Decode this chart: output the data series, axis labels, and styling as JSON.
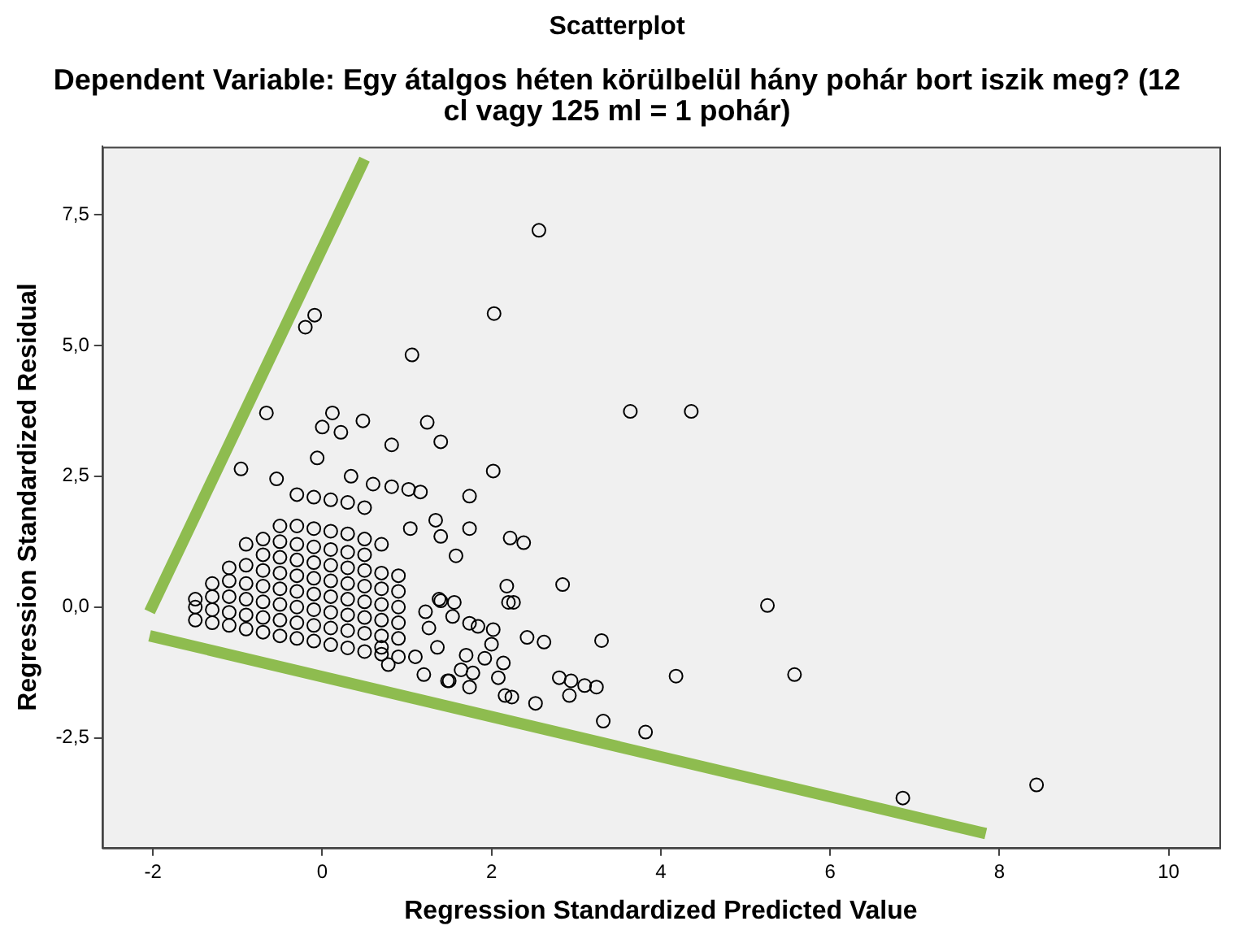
{
  "chart_data": {
    "type": "scatter",
    "title": "Scatterplot",
    "subtitle": "Dependent Variable: Egy átalgos héten körülbelül hány pohár bort iszik meg? (12 cl vagy 125 ml = 1 pohár)",
    "xlabel": "Regression Standardized Predicted Value",
    "ylabel": "Regression Standardized Residual",
    "xlim": [
      -2.6,
      10.6
    ],
    "ylim": [
      -4.6,
      8.8
    ],
    "xticks": [
      -2,
      0,
      2,
      4,
      6,
      8,
      10
    ],
    "yticks": [
      {
        "value": -2.5,
        "label": "-2,5"
      },
      {
        "value": 0,
        "label": "0,0"
      },
      {
        "value": 2.5,
        "label": "2,5"
      },
      {
        "value": 5,
        "label": "5,0"
      },
      {
        "value": 7.5,
        "label": "7,5"
      }
    ],
    "grid": false,
    "legend": false,
    "marker": "circle",
    "series": [
      {
        "type": "scatter",
        "color": "#000000",
        "x": [
          2.56,
          2.03,
          -0.09,
          -0.2,
          1.06,
          3.64,
          4.36,
          -0.66,
          0.12,
          0,
          0.22,
          0.48,
          1.24,
          1.4,
          0.82,
          -0.06,
          -0.96,
          -0.54,
          2.02,
          1.74,
          1.74,
          1.04,
          1.34,
          1.4,
          1.58,
          2.22,
          2.38,
          2.18,
          2.26,
          2.84,
          5.26,
          2.42,
          2.62,
          3.3,
          4.18,
          5.58,
          2.8,
          2.94,
          3.1,
          3.24,
          2.92,
          2.16,
          2.52,
          3.32,
          3.82,
          6.86,
          8.44,
          1.38,
          1.56,
          1.26,
          1.74,
          1.84,
          2.02,
          2.0,
          1.36,
          1.7,
          1.92,
          2.14,
          1.64,
          1.78,
          2.08,
          1.48,
          1.74,
          1.2,
          1.5,
          2.24,
          2.2,
          1.1,
          0.7,
          0.78,
          1.54,
          1.22,
          1.4,
          0.34,
          0.6,
          0.82,
          1.02,
          1.16,
          -1.5,
          -1.5,
          -1.5,
          -1.3,
          -1.3,
          -1.3,
          -1.3,
          -1.1,
          -1.1,
          -1.1,
          -1.1,
          -1.1,
          -0.9,
          -0.9,
          -0.9,
          -0.9,
          -0.9,
          -0.9,
          -0.7,
          -0.7,
          -0.7,
          -0.7,
          -0.7,
          -0.7,
          -0.7,
          -0.5,
          -0.5,
          -0.5,
          -0.5,
          -0.5,
          -0.5,
          -0.5,
          -0.5,
          -0.3,
          -0.3,
          -0.3,
          -0.3,
          -0.3,
          -0.3,
          -0.3,
          -0.3,
          -0.3,
          -0.1,
          -0.1,
          -0.1,
          -0.1,
          -0.1,
          -0.1,
          -0.1,
          -0.1,
          -0.1,
          0.1,
          0.1,
          0.1,
          0.1,
          0.1,
          0.1,
          0.1,
          0.1,
          0.1,
          0.3,
          0.3,
          0.3,
          0.3,
          0.3,
          0.3,
          0.3,
          0.3,
          0.3,
          0.5,
          0.5,
          0.5,
          0.5,
          0.5,
          0.5,
          0.5,
          0.5,
          0.5,
          0.7,
          0.7,
          0.7,
          0.7,
          0.7,
          0.7,
          0.7,
          0.9,
          0.9,
          0.9,
          0.9,
          0.9,
          0.9
        ],
        "values": [
          7.2,
          5.61,
          5.58,
          5.35,
          4.82,
          3.74,
          3.74,
          3.71,
          3.71,
          3.44,
          3.34,
          3.56,
          3.53,
          3.16,
          3.1,
          2.85,
          2.64,
          2.45,
          2.6,
          2.12,
          1.5,
          1.5,
          1.66,
          1.35,
          0.98,
          1.32,
          1.23,
          0.4,
          0.09,
          0.43,
          0.03,
          -0.58,
          -0.67,
          -0.64,
          -1.32,
          -1.29,
          -1.35,
          -1.41,
          -1.5,
          -1.53,
          -1.69,
          -1.69,
          -1.84,
          -2.18,
          -2.39,
          -3.65,
          -3.4,
          0.15,
          0.09,
          -0.4,
          -0.31,
          -0.37,
          -0.43,
          -0.71,
          -0.77,
          -0.92,
          -0.98,
          -1.07,
          -1.2,
          -1.26,
          -1.35,
          -1.41,
          -1.53,
          -1.29,
          -1.41,
          -1.72,
          0.09,
          -0.95,
          -0.77,
          -1.1,
          -0.18,
          -0.09,
          0.12,
          2.5,
          2.35,
          2.3,
          2.25,
          2.2,
          -0.25,
          0.0,
          0.15,
          -0.3,
          -0.05,
          0.2,
          0.45,
          -0.35,
          -0.1,
          0.2,
          0.5,
          0.75,
          -0.42,
          -0.15,
          0.15,
          0.45,
          0.8,
          1.2,
          -0.48,
          -0.2,
          0.1,
          0.4,
          0.7,
          1.0,
          1.3,
          -0.55,
          -0.25,
          0.05,
          0.35,
          0.65,
          0.95,
          1.25,
          1.55,
          -0.6,
          -0.3,
          0.0,
          0.3,
          0.6,
          0.9,
          1.2,
          1.55,
          2.15,
          -0.65,
          -0.35,
          -0.05,
          0.25,
          0.55,
          0.85,
          1.15,
          1.5,
          2.1,
          -0.72,
          -0.4,
          -0.1,
          0.2,
          0.5,
          0.8,
          1.1,
          1.45,
          2.05,
          -0.78,
          -0.45,
          -0.15,
          0.15,
          0.45,
          0.75,
          1.05,
          1.4,
          2.0,
          -0.85,
          -0.5,
          -0.2,
          0.1,
          0.4,
          0.7,
          1.0,
          1.3,
          1.9,
          -0.9,
          -0.55,
          -0.25,
          0.05,
          0.35,
          0.65,
          1.2,
          -0.95,
          -0.6,
          -0.3,
          0.0,
          0.3,
          0.6
        ]
      },
      {
        "type": "line",
        "color": "#8ebc4f",
        "marker": "none",
        "x": [
          -2.04,
          0.5
        ],
        "values": [
          -0.09,
          8.56
        ]
      },
      {
        "type": "line",
        "color": "#8ebc4f",
        "marker": "none",
        "x": [
          -2.04,
          7.84
        ],
        "values": [
          -0.55,
          -4.33
        ]
      }
    ]
  }
}
